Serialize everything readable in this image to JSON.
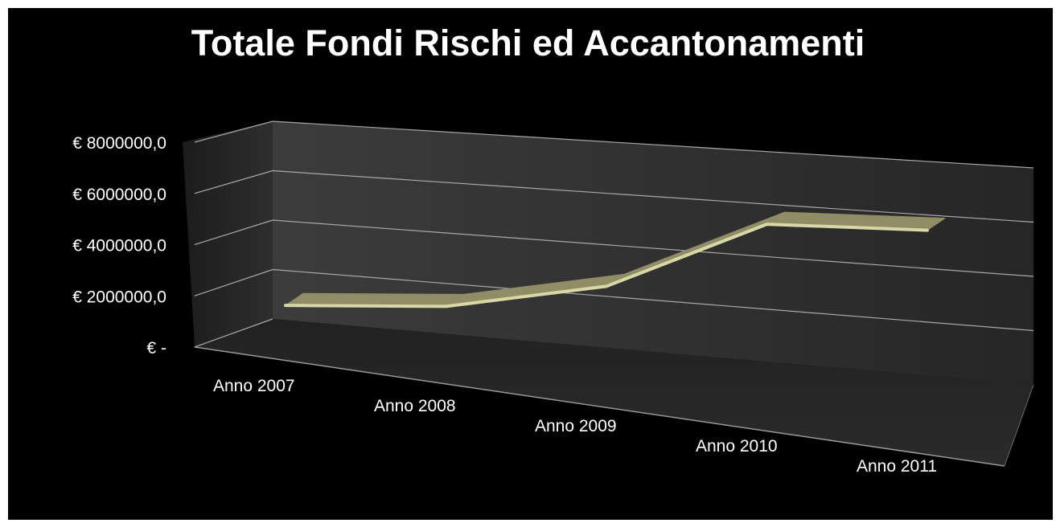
{
  "chart_data": {
    "type": "line",
    "title": "Totale Fondi Rischi ed Accantonamenti",
    "categories": [
      "Anno 2007",
      "Anno 2008",
      "Anno 2009",
      "Anno 2010",
      "Anno 2011"
    ],
    "series": [
      {
        "values": [
          1500000,
          1950000,
          3200000,
          6000000,
          6150000
        ]
      }
    ],
    "y_ticks": [
      {
        "value": 0,
        "label": "€ -"
      },
      {
        "value": 2000000,
        "label": "€ 2000000,0"
      },
      {
        "value": 4000000,
        "label": "€ 4000000,0"
      },
      {
        "value": 6000000,
        "label": "€ 6000000,0"
      },
      {
        "value": 8000000,
        "label": "€ 8000000,0"
      }
    ],
    "ylim": [
      0,
      8000000
    ],
    "grid": true,
    "legend": "none",
    "three_d": true,
    "colors": {
      "background": "#000000",
      "ribbon_face": "#d8d7a6",
      "ribbon_top": "#8f8c66",
      "grid": "#a8a8a8"
    }
  }
}
